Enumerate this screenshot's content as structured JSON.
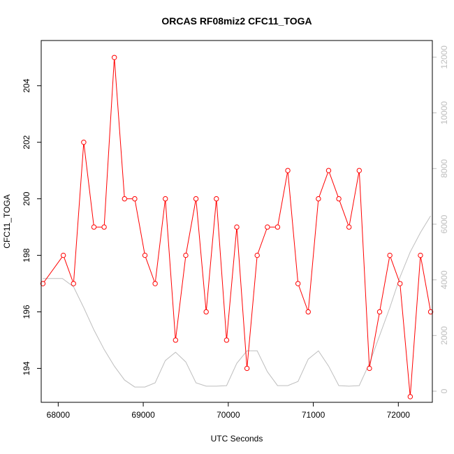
{
  "chart_data": {
    "type": "line",
    "title": "ORCAS RF08miz2 CFC11_TOGA",
    "xlabel": "UTC Seconds",
    "ylabel": "CFC11_TOGA",
    "xlim": [
      67800,
      72400
    ],
    "ylim": [
      192.8,
      205.6
    ],
    "y2lim": [
      -400,
      12600
    ],
    "x_ticks": [
      68000,
      69000,
      70000,
      71000,
      72000
    ],
    "y_ticks": [
      194,
      196,
      198,
      200,
      202,
      204
    ],
    "y2_ticks": [
      0,
      2000,
      4000,
      6000,
      8000,
      10000,
      12000
    ],
    "series": [
      {
        "role": "primary",
        "axis": "left",
        "color": "#ff0000",
        "marker": "open-circle",
        "x": [
          67820,
          68060,
          68180,
          68300,
          68420,
          68540,
          68660,
          68780,
          68900,
          69020,
          69140,
          69260,
          69380,
          69500,
          69620,
          69740,
          69860,
          69980,
          70100,
          70220,
          70340,
          70460,
          70580,
          70700,
          70820,
          70940,
          71060,
          71180,
          71300,
          71420,
          71540,
          71660,
          71780,
          71900,
          72020,
          72140,
          72260,
          72380
        ],
        "values": [
          197,
          198,
          197,
          202,
          199,
          199,
          205,
          200,
          200,
          198,
          197,
          200,
          195,
          198,
          200,
          196,
          200,
          195,
          199,
          194,
          198,
          199,
          199,
          201,
          197,
          196,
          200,
          201,
          200,
          199,
          201,
          194,
          196,
          198,
          197,
          193,
          198,
          196
        ]
      },
      {
        "role": "secondary",
        "axis": "right",
        "color": "#bebebe",
        "marker": "none",
        "x": [
          67820,
          68050,
          68180,
          68300,
          68420,
          68540,
          68660,
          68780,
          68900,
          69020,
          69140,
          69260,
          69380,
          69500,
          69620,
          69740,
          69860,
          69980,
          70100,
          70220,
          70340,
          70460,
          70580,
          70700,
          70820,
          70940,
          71060,
          71180,
          71300,
          71420,
          71540,
          71660,
          71780,
          71900,
          72020,
          72140,
          72260,
          72380
        ],
        "values": [
          4050,
          4050,
          3750,
          3000,
          2200,
          1500,
          900,
          400,
          150,
          150,
          300,
          1100,
          1400,
          1050,
          300,
          180,
          180,
          200,
          1000,
          1450,
          1450,
          700,
          200,
          200,
          350,
          1150,
          1450,
          900,
          200,
          180,
          200,
          1000,
          2000,
          3000,
          4100,
          5000,
          5700,
          6300
        ]
      }
    ]
  }
}
